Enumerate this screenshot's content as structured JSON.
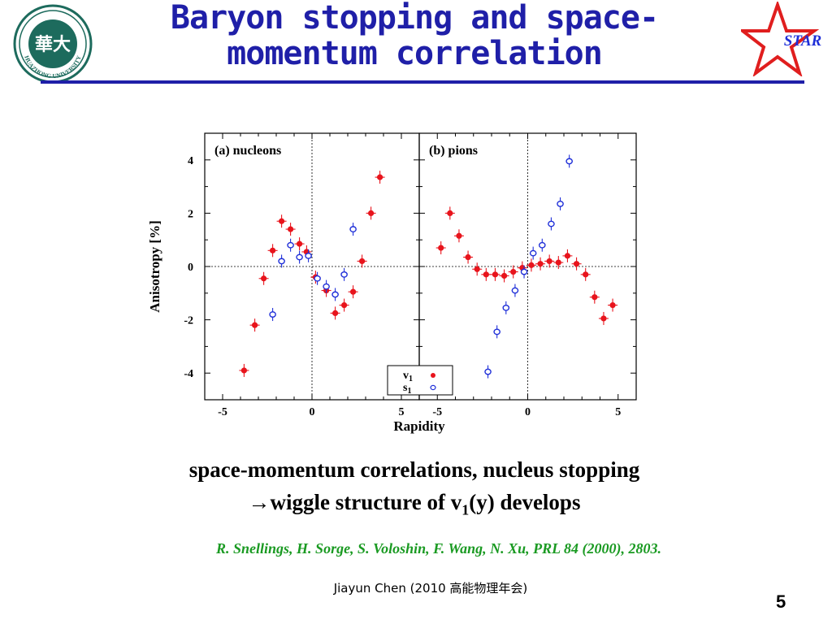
{
  "title": {
    "line1": "Baryon stopping and space-",
    "line2": "momentum correlation"
  },
  "logo": {
    "text": "HUAZHONG UNIVERSITY",
    "glyph": "華大"
  },
  "star_logo": {
    "text": "STAR"
  },
  "chart_data": [
    {
      "type": "scatter",
      "title": "(a) nucleons",
      "xlabel": "Rapidity",
      "ylabel": "Anisotropy [%]",
      "xlim": [
        -6,
        6
      ],
      "ylim": [
        -5,
        5
      ],
      "xticks": [
        -5,
        0,
        5
      ],
      "yticks": [
        -4,
        -2,
        0,
        2,
        4
      ],
      "series": [
        {
          "name": "v1",
          "color": "#e8141c",
          "marker": "filled-circle",
          "x": [
            -3.8,
            -3.2,
            -2.7,
            -2.2,
            -1.7,
            -1.2,
            -0.7,
            -0.3,
            0.2,
            0.8,
            1.3,
            1.8,
            2.3,
            2.8,
            3.3,
            3.8
          ],
          "y": [
            -3.9,
            -2.2,
            -0.45,
            0.6,
            1.7,
            1.4,
            0.85,
            0.55,
            -0.4,
            -0.9,
            -1.75,
            -1.45,
            -0.95,
            0.2,
            2.0,
            3.35
          ]
        },
        {
          "name": "s1",
          "color": "#1f2fd8",
          "marker": "open-circle",
          "x": [
            -2.2,
            -1.7,
            -1.2,
            -0.7,
            -0.2,
            0.3,
            0.8,
            1.3,
            1.8,
            2.3
          ],
          "y": [
            -1.8,
            0.2,
            0.8,
            0.35,
            0.4,
            -0.45,
            -0.75,
            -1.05,
            -0.3,
            1.4
          ]
        }
      ]
    },
    {
      "type": "scatter",
      "title": "(b) pions",
      "xlabel": "Rapidity",
      "ylabel": "Anisotropy [%]",
      "xlim": [
        -6,
        6
      ],
      "ylim": [
        -5,
        5
      ],
      "xticks": [
        -5,
        0,
        5
      ],
      "yticks": [
        -4,
        -2,
        0,
        2,
        4
      ],
      "series": [
        {
          "name": "v1",
          "color": "#e8141c",
          "marker": "filled-circle",
          "x": [
            -4.8,
            -4.3,
            -3.8,
            -3.3,
            -2.8,
            -2.3,
            -1.8,
            -1.3,
            -0.8,
            -0.3,
            0.2,
            0.7,
            1.2,
            1.7,
            2.2,
            2.7,
            3.2,
            3.7,
            4.2,
            4.7
          ],
          "y": [
            0.7,
            2.0,
            1.15,
            0.35,
            -0.1,
            -0.3,
            -0.3,
            -0.35,
            -0.2,
            -0.05,
            0.05,
            0.1,
            0.2,
            0.15,
            0.4,
            0.1,
            -0.3,
            -1.15,
            -1.95,
            -1.45
          ]
        },
        {
          "name": "s1",
          "color": "#1f2fd8",
          "marker": "open-circle",
          "x": [
            -2.2,
            -1.7,
            -1.2,
            -0.7,
            -0.2,
            0.3,
            0.8,
            1.3,
            1.8,
            2.3
          ],
          "y": [
            -3.95,
            -2.45,
            -1.55,
            -0.9,
            -0.2,
            0.5,
            0.8,
            1.6,
            2.35,
            3.95
          ]
        }
      ]
    }
  ],
  "legend": [
    {
      "label": "v1",
      "main": "v",
      "sub": "1"
    },
    {
      "label": "s1",
      "main": "s",
      "sub": "1"
    }
  ],
  "caption": {
    "line1": "space-momentum correlations, nucleus stopping",
    "arrow": "→",
    "line2_a": "wiggle structure of v",
    "line2_sub": "1",
    "line2_b": "(y) develops"
  },
  "reference": "R. Snellings, H. Sorge, S. Voloshin, F. Wang, N. Xu, PRL 84 (2000), 2803.",
  "footer": "Jiayun Chen (2010 高能物理年会)",
  "page_number": "5",
  "colors": {
    "title": "#1f1fa8",
    "reference": "#1a9a22",
    "v1": "#e8141c",
    "s1": "#1f2fd8",
    "logo": "#1d6b5d",
    "star": "#e01e1e"
  }
}
